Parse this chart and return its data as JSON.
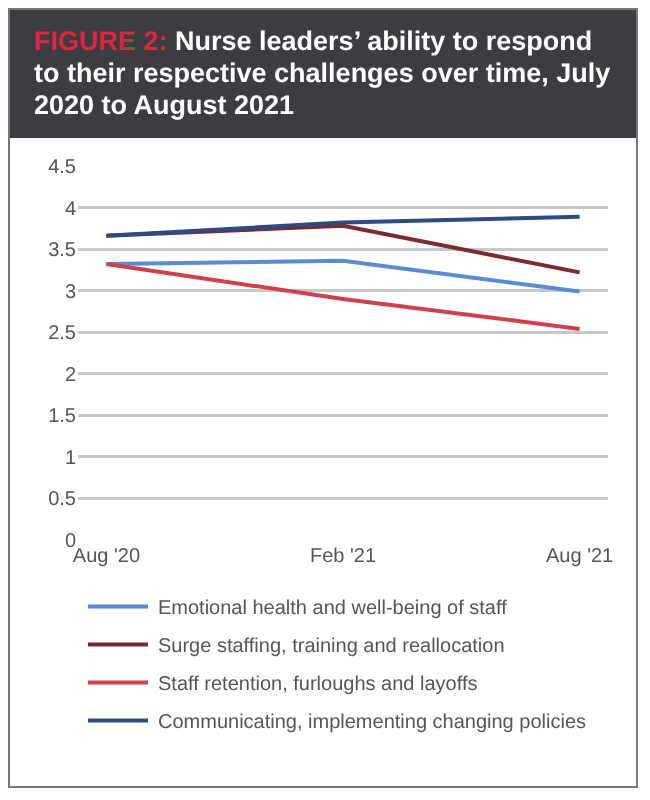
{
  "chart_data": {
    "type": "line",
    "title": "FIGURE 2: Nurse leaders’ ability to respond to their respective challenges over time, July 2020 to August 2021",
    "categories": [
      "Aug '20",
      "Feb '21",
      "Aug '21"
    ],
    "series": [
      {
        "name": "Emotional health and well-being of staff",
        "color": "#5b8bd6",
        "values": [
          3.32,
          3.36,
          2.99
        ]
      },
      {
        "name": "Surge staffing, training and reallocation",
        "color": "#7a2a30",
        "values": [
          3.66,
          3.78,
          3.22
        ]
      },
      {
        "name": "Staff retention, furloughs and layoffs",
        "color": "#d0404a",
        "values": [
          3.32,
          2.9,
          2.54
        ]
      },
      {
        "name": "Communicating, implementing changing policies",
        "color": "#2e4a7e",
        "values": [
          3.66,
          3.82,
          3.89
        ]
      }
    ],
    "ylim": [
      0,
      4.5
    ],
    "yticks": [
      0,
      0.5,
      1,
      1.5,
      2,
      2.5,
      3,
      3.5,
      4,
      4.5
    ],
    "grid": "y",
    "legend": "bottom",
    "marker": "none",
    "line_style": "solid"
  }
}
